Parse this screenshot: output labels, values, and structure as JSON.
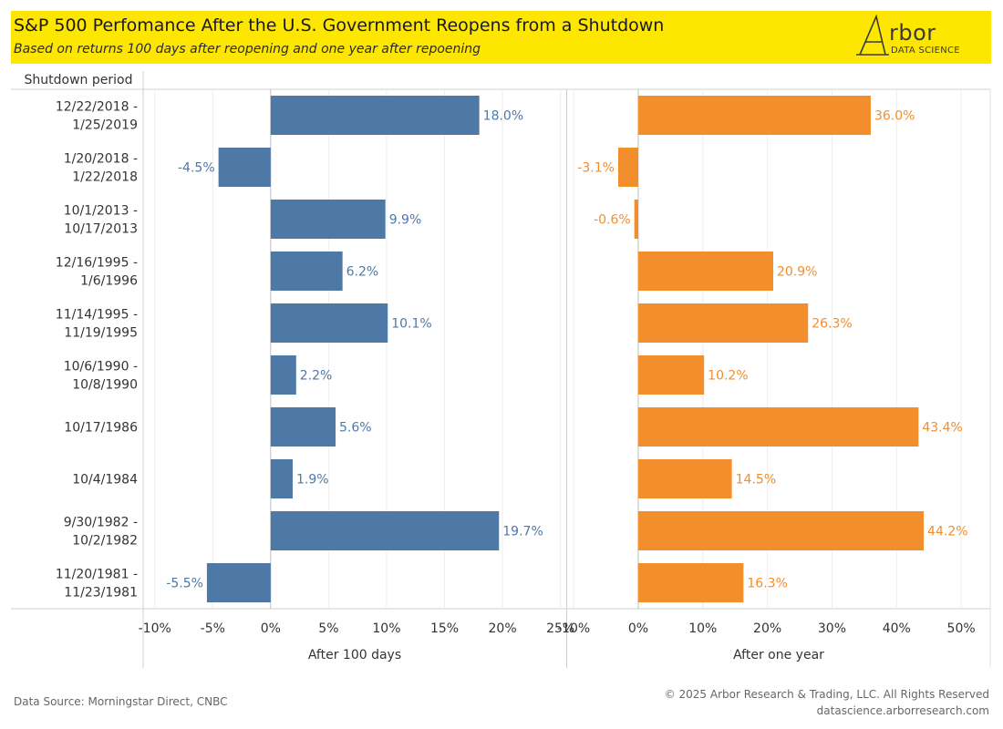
{
  "header": {
    "title": "S&P 500 Perfomance After the U.S. Government Reopens from a Shutdown",
    "subtitle": "Based on returns 100 days after reopening and one year after repoening"
  },
  "logo": {
    "wordmark": "rbor",
    "tagline": "DATA SCIENCE"
  },
  "footer": {
    "source": "Data Source: Morningstar Direct, CNBC",
    "copyright": "© 2025 Arbor Research & Trading, LLC. All Rights Reserved",
    "website": "datascience.arborresearch.com"
  },
  "chart_data": {
    "type": "bar",
    "orientation": "horizontal",
    "row_header": "Shutdown period",
    "categories": [
      [
        "12/22/2018 -",
        "1/25/2019"
      ],
      [
        "1/20/2018 -",
        "1/22/2018"
      ],
      [
        "10/1/2013 -",
        "10/17/2013"
      ],
      [
        "12/16/1995 -",
        "1/6/1996"
      ],
      [
        "11/14/1995 -",
        "11/19/1995"
      ],
      [
        "10/6/1990 -",
        "10/8/1990"
      ],
      [
        "10/17/1986"
      ],
      [
        "10/4/1984"
      ],
      [
        "9/30/1982 -",
        "10/2/1982"
      ],
      [
        "11/20/1981 -",
        "11/23/1981"
      ]
    ],
    "panels": [
      {
        "xlabel": "After 100 days",
        "color": "#4e79a7",
        "xlim": [
          -11,
          25.5
        ],
        "ticks": [
          -10,
          -5,
          0,
          5,
          10,
          15,
          20,
          25
        ],
        "tick_labels": [
          "-10%",
          "-5%",
          "0%",
          "5%",
          "10%",
          "15%",
          "20%",
          "25%"
        ],
        "values": [
          18.0,
          -4.5,
          9.9,
          6.2,
          10.1,
          2.2,
          5.6,
          1.9,
          19.7,
          -5.5
        ],
        "value_labels": [
          "18.0%",
          "-4.5%",
          "9.9%",
          "6.2%",
          "10.1%",
          "2.2%",
          "5.6%",
          "1.9%",
          "19.7%",
          "-5.5%"
        ]
      },
      {
        "xlabel": "After one year",
        "color": "#f28e2b",
        "xlim": [
          -11,
          54.5
        ],
        "ticks": [
          -10,
          0,
          10,
          20,
          30,
          40,
          50
        ],
        "tick_labels": [
          "-10%",
          "0%",
          "10%",
          "20%",
          "30%",
          "40%",
          "50%"
        ],
        "values": [
          36.0,
          -3.1,
          -0.6,
          20.9,
          26.3,
          10.2,
          43.4,
          14.5,
          44.2,
          16.3
        ],
        "value_labels": [
          "36.0%",
          "-3.1%",
          "-0.6%",
          "20.9%",
          "26.3%",
          "10.2%",
          "43.4%",
          "14.5%",
          "44.2%",
          "16.3%"
        ]
      }
    ],
    "grid": true
  }
}
